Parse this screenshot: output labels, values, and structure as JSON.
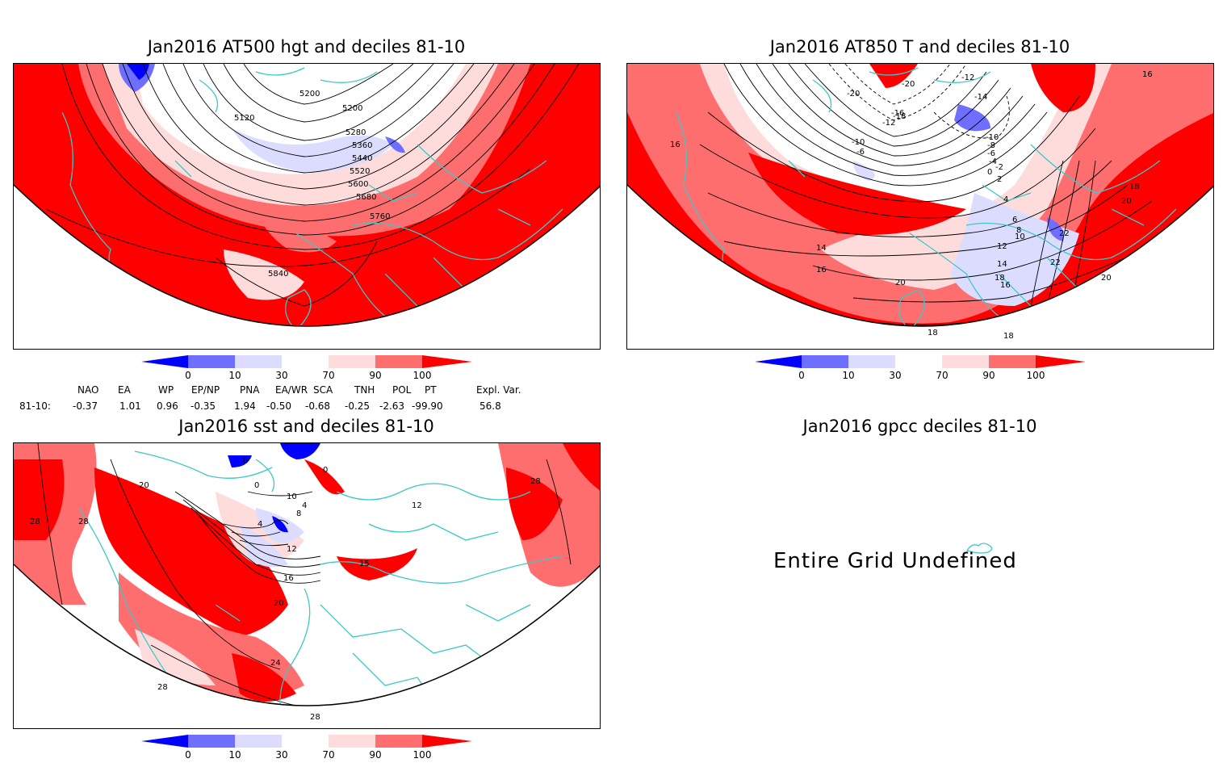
{
  "panels": {
    "hgt": {
      "title": "Jan2016 AT500 hgt and deciles 81-10",
      "contour_labels": [
        "5200",
        "5120",
        "5200",
        "5280",
        "5360",
        "5440",
        "5520",
        "5600",
        "5680",
        "5760",
        "5840"
      ]
    },
    "t850": {
      "title": "Jan2016 AT850 T and deciles 81-10",
      "contour_labels": [
        "-20",
        "-20",
        "-12",
        "-14",
        "-10",
        "-8",
        "-6",
        "-4",
        "-2",
        "0",
        "2",
        "4",
        "6",
        "8",
        "10",
        "12",
        "14",
        "16",
        "18",
        "20",
        "22",
        "22",
        "16",
        "18",
        "18",
        "20",
        "14",
        "16",
        "18",
        "20",
        "-18",
        "-16",
        "-12",
        "-10",
        "-6",
        "16"
      ]
    },
    "sst": {
      "title": "Jan2016 sst and deciles 81-10",
      "contour_labels": [
        "20",
        "28",
        "28",
        "28",
        "28",
        "0",
        "0",
        "4",
        "8",
        "12",
        "16",
        "20",
        "24",
        "28",
        "0",
        "10",
        "4",
        "12",
        "15"
      ]
    },
    "gpcc": {
      "title": "Jan2016 gpcc deciles 81-10",
      "message": "Entire Grid Undefined"
    }
  },
  "colorbar": {
    "ticks": [
      "0",
      "10",
      "30",
      "70",
      "90",
      "100"
    ],
    "colors": [
      "#0000ff",
      "#6e6eff",
      "#dcdcff",
      "#ffffff",
      "#ffdcdc",
      "#ff6e6e",
      "#ff0000"
    ]
  },
  "indices": {
    "row_label": "81-10:",
    "headers": [
      "NAO",
      "EA",
      "WP",
      "EP/NP",
      "PNA",
      "EA/WR",
      "SCA",
      "TNH",
      "POL",
      "PT",
      "Expl. Var."
    ],
    "values": [
      "-0.37",
      "1.01",
      "0.96",
      "-0.35",
      "1.94",
      "-0.50",
      "-0.68",
      "-0.25",
      "-2.63",
      "-99.90",
      "56.8"
    ]
  },
  "colors": {
    "coast": "#3cc8c8",
    "contour": "#000000"
  }
}
